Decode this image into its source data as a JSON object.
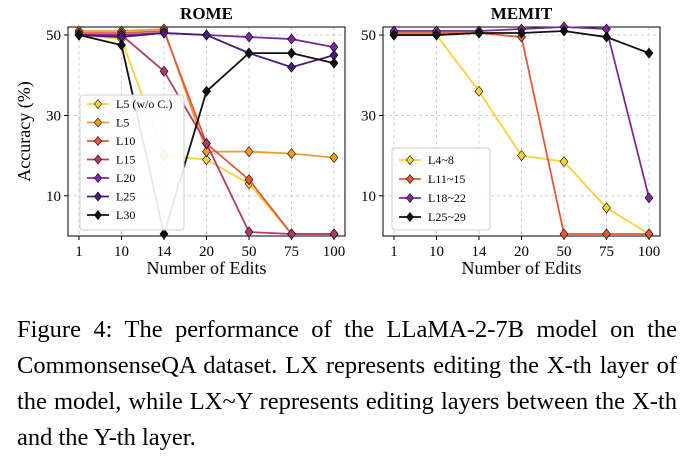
{
  "caption": "Figure 4: The performance of the LLaMA-2-7B model on the CommonsenseQA dataset. LX represents editing the X-th layer of the model, while LX~Y represents editing layers between the X-th and the Y-th layer.",
  "chart_data": [
    {
      "type": "line",
      "title": "ROME",
      "xlabel": "Number of Edits",
      "ylabel": "Accuracy (%)",
      "categories": [
        "1",
        "10",
        "14",
        "20",
        "50",
        "75",
        "100"
      ],
      "yticks": [
        10,
        30,
        50
      ],
      "ylim": [
        0,
        52
      ],
      "grid": true,
      "legend": "center-left",
      "series": [
        {
          "name": "L5 (w/o C.)",
          "color": "#F5D33B",
          "values": [
            50,
            49,
            20,
            19,
            13,
            0.5,
            0.5
          ]
        },
        {
          "name": "L5",
          "color": "#F29A2E",
          "values": [
            51,
            51,
            51.5,
            21,
            21,
            20.5,
            19.5
          ]
        },
        {
          "name": "L10",
          "color": "#E05A3A",
          "values": [
            50.5,
            50.5,
            51,
            23,
            14,
            0.5,
            0.5
          ]
        },
        {
          "name": "L15",
          "color": "#B23A6E",
          "values": [
            50,
            50,
            41,
            23,
            1,
            0.5,
            0.5
          ]
        },
        {
          "name": "L20",
          "color": "#7B2A9E",
          "values": [
            50,
            50,
            50.5,
            50,
            49.5,
            49,
            47
          ]
        },
        {
          "name": "L25",
          "color": "#4A1B7A",
          "values": [
            50,
            49.5,
            50.5,
            50,
            45.5,
            42,
            45
          ]
        },
        {
          "name": "L30",
          "color": "#111111",
          "values": [
            50,
            47.5,
            0.5,
            36,
            45.5,
            45.5,
            43
          ]
        }
      ]
    },
    {
      "type": "line",
      "title": "MEMIT",
      "xlabel": "Number of Edits",
      "ylabel": "",
      "categories": [
        "1",
        "10",
        "14",
        "20",
        "50",
        "75",
        "100"
      ],
      "yticks": [
        10,
        30,
        50
      ],
      "ylim": [
        0,
        52
      ],
      "grid": true,
      "legend": "bottom-left",
      "series": [
        {
          "name": "L4~8",
          "color": "#F5D33B",
          "values": [
            50,
            50,
            36,
            20,
            18.5,
            7,
            0.5
          ]
        },
        {
          "name": "L11~15",
          "color": "#E05A3A",
          "values": [
            50.5,
            50.5,
            50.5,
            49.5,
            0.5,
            0.5,
            0.5
          ]
        },
        {
          "name": "L18~22",
          "color": "#7B2A9E",
          "values": [
            51,
            51,
            51,
            51.5,
            52,
            51.5,
            9.5
          ]
        },
        {
          "name": "L25~29",
          "color": "#111111",
          "values": [
            50,
            50,
            50.5,
            50.5,
            51,
            49.5,
            45.5
          ]
        }
      ]
    }
  ]
}
